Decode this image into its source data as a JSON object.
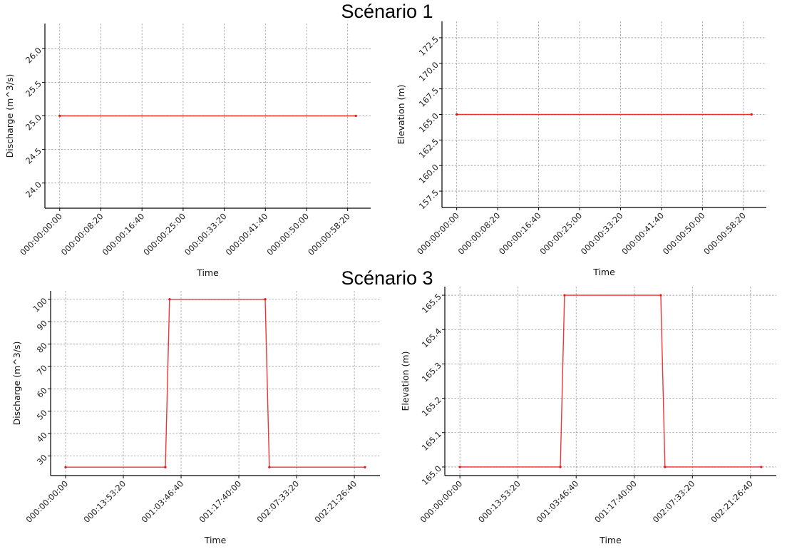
{
  "titles": {
    "top": "Scénario 1",
    "bottom": "Scénario 3"
  },
  "chart_data": [
    {
      "type": "line",
      "group": "Scénario 1",
      "xlabel": "Time",
      "ylabel": "Discharge (m^3/s)",
      "x_ticks": [
        "000:00:00:00",
        "000:00:08:20",
        "000:00:16:40",
        "000:00:25:00",
        "000:00:33:20",
        "000:00:41:40",
        "000:00:50:00",
        "000:00:58:20"
      ],
      "y_ticks": [
        "24.0",
        "24.5",
        "25.0",
        "25.5",
        "26.0"
      ],
      "ylim": [
        23.625,
        26.375
      ],
      "grid": true,
      "color": "#ee1111",
      "x": [
        "000:00:00:00",
        "000:01:00:00"
      ],
      "y": [
        25,
        25
      ]
    },
    {
      "type": "line",
      "group": "Scénario 1",
      "xlabel": "Time",
      "ylabel": "Elevation (m)",
      "x_ticks": [
        "000:00:00:00",
        "000:00:08:20",
        "000:00:16:40",
        "000:00:25:00",
        "000:00:33:20",
        "000:00:41:40",
        "000:00:50:00",
        "000:00:58:20"
      ],
      "y_ticks": [
        "157.5",
        "160.0",
        "162.5",
        "165.0",
        "167.5",
        "170.0",
        "172.5"
      ],
      "ylim": [
        155.9,
        174.1
      ],
      "grid": true,
      "color": "#ee1111",
      "x": [
        "000:00:00:00",
        "000:01:00:00"
      ],
      "y": [
        165,
        165
      ]
    },
    {
      "type": "line",
      "group": "Scénario 3",
      "xlabel": "Time",
      "ylabel": "Discharge (m^3/s)",
      "x_ticks": [
        "000:00:00:00",
        "000:13:53:20",
        "001:03:46:40",
        "001:17:40:00",
        "002:07:33:20",
        "002:21:26:40"
      ],
      "y_ticks": [
        "30",
        "40",
        "50",
        "60",
        "70",
        "80",
        "90",
        "100"
      ],
      "ylim": [
        21.25,
        103.75
      ],
      "grid": true,
      "color": "#ee1111",
      "x": [
        "000:00:00:00",
        "001:00:00:00",
        "001:01:00:00",
        "002:00:00:00",
        "002:01:00:00",
        "003:00:00:00"
      ],
      "y": [
        25,
        25,
        100,
        100,
        25,
        25
      ]
    },
    {
      "type": "line",
      "group": "Scénario 3",
      "xlabel": "Time",
      "ylabel": "Elevation (m)",
      "x_ticks": [
        "000:00:00:00",
        "000:13:53:20",
        "001:03:46:40",
        "001:17:40:00",
        "002:07:33:20",
        "002:21:26:40"
      ],
      "y_ticks": [
        "165.0",
        "165.1",
        "165.2",
        "165.3",
        "165.4",
        "165.5"
      ],
      "ylim": [
        164.975,
        165.525
      ],
      "grid": true,
      "color": "#ee1111",
      "x": [
        "000:00:00:00",
        "001:00:00:00",
        "001:01:00:00",
        "002:00:00:00",
        "002:01:00:00",
        "003:00:00:00"
      ],
      "y": [
        165,
        165,
        165.5,
        165.5,
        165,
        165
      ]
    }
  ]
}
